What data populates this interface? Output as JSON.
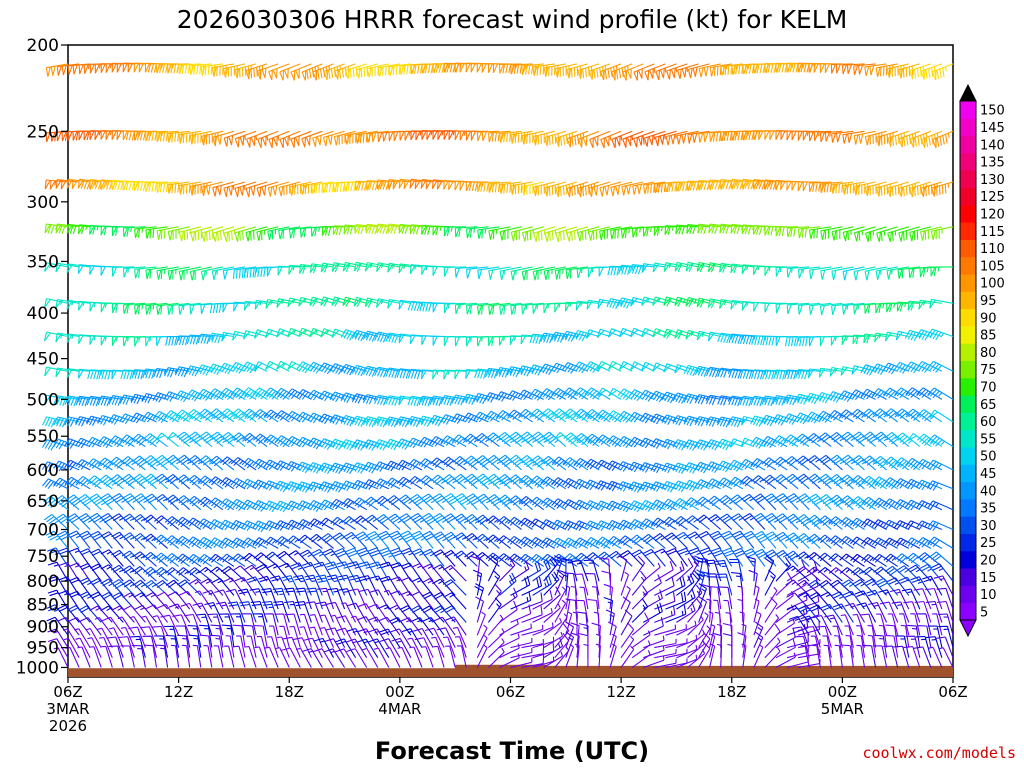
{
  "chart_data": {
    "type": "wind_barb_time_height",
    "title": "2026030306 HRRR forecast wind profile (kt) for KELM",
    "xlabel": "Forecast Time (UTC)",
    "ylabel": "",
    "credit": "coolwx.com/models",
    "y_levels": [
      200,
      250,
      300,
      350,
      400,
      450,
      500,
      550,
      600,
      650,
      700,
      750,
      800,
      850,
      900,
      950,
      1000
    ],
    "y_range": [
      200,
      1025
    ],
    "x_ticks": [
      {
        "hour": 0,
        "lines": [
          "06Z",
          "3MAR",
          "2026"
        ]
      },
      {
        "hour": 6,
        "lines": [
          "12Z"
        ]
      },
      {
        "hour": 12,
        "lines": [
          "18Z"
        ]
      },
      {
        "hour": 18,
        "lines": [
          "00Z",
          "4MAR"
        ]
      },
      {
        "hour": 24,
        "lines": [
          "06Z"
        ]
      },
      {
        "hour": 30,
        "lines": [
          "12Z"
        ]
      },
      {
        "hour": 36,
        "lines": [
          "18Z"
        ]
      },
      {
        "hour": 42,
        "lines": [
          "00Z",
          "5MAR"
        ]
      },
      {
        "hour": 48,
        "lines": [
          "06Z"
        ]
      }
    ],
    "x_range_hours": [
      0,
      48
    ],
    "colorbar": {
      "labels": [
        5,
        10,
        15,
        20,
        25,
        30,
        35,
        40,
        45,
        50,
        55,
        60,
        65,
        70,
        75,
        80,
        85,
        90,
        95,
        100,
        105,
        110,
        115,
        120,
        125,
        130,
        135,
        140,
        145,
        150
      ],
      "colors": [
        "#8c00ff",
        "#6e00f0",
        "#4a00e0",
        "#0000dc",
        "#0028e6",
        "#0050f0",
        "#0078ff",
        "#0096ff",
        "#00b4ff",
        "#00d2f0",
        "#00e6c8",
        "#00f096",
        "#00f05a",
        "#28f000",
        "#78f000",
        "#b4f000",
        "#f0f000",
        "#ffdc00",
        "#ffb400",
        "#ff9600",
        "#ff7800",
        "#ff5a00",
        "#ff2800",
        "#ff0000",
        "#f00028",
        "#f00050",
        "#f00078",
        "#f000a0",
        "#f000c8",
        "#f000f0"
      ],
      "bounds": [
        0,
        155
      ]
    },
    "wind_levels": [
      {
        "p": 210,
        "speed": 95,
        "dir": 260
      },
      {
        "p": 250,
        "speed": 100,
        "dir": 260
      },
      {
        "p": 285,
        "speed": 95,
        "dir": 265
      },
      {
        "p": 320,
        "speed": 70,
        "dir": 265
      },
      {
        "p": 355,
        "speed": 55,
        "dir": 270
      },
      {
        "p": 390,
        "speed": 55,
        "dir": 275
      },
      {
        "p": 425,
        "speed": 50,
        "dir": 280
      },
      {
        "p": 465,
        "speed": 45,
        "dir": 285
      },
      {
        "p": 500,
        "speed": 40,
        "dir": 290
      },
      {
        "p": 530,
        "speed": 40,
        "dir": 295
      },
      {
        "p": 565,
        "speed": 40,
        "dir": 300
      },
      {
        "p": 600,
        "speed": 35,
        "dir": 300
      },
      {
        "p": 630,
        "speed": 35,
        "dir": 300
      },
      {
        "p": 665,
        "speed": 35,
        "dir": 305
      },
      {
        "p": 700,
        "speed": 30,
        "dir": 305
      },
      {
        "p": 735,
        "speed": 30,
        "dir": 310
      },
      {
        "p": 770,
        "speed": 25,
        "dir": 315
      },
      {
        "p": 800,
        "speed": 20,
        "dir": 320
      },
      {
        "p": 830,
        "speed": 20,
        "dir": 325
      },
      {
        "p": 860,
        "speed": 15,
        "dir": 330
      },
      {
        "p": 890,
        "speed": 15,
        "dir": 330
      },
      {
        "p": 920,
        "speed": 10,
        "dir": 335
      },
      {
        "p": 950,
        "speed": 10,
        "dir": 340
      },
      {
        "p": 975,
        "speed": 10,
        "dir": 340
      },
      {
        "p": 1000,
        "speed": 5,
        "dir": 340
      }
    ],
    "terrain": [
      {
        "hour": 0,
        "p": 1002
      },
      {
        "hour": 21,
        "p": 1002
      },
      {
        "hour": 21,
        "p": 993
      },
      {
        "hour": 24,
        "p": 993
      },
      {
        "hour": 24,
        "p": 993
      },
      {
        "hour": 26,
        "p": 993
      },
      {
        "hour": 26,
        "p": 996
      },
      {
        "hour": 48,
        "p": 996
      }
    ],
    "terrain_color": "#a0522d"
  }
}
